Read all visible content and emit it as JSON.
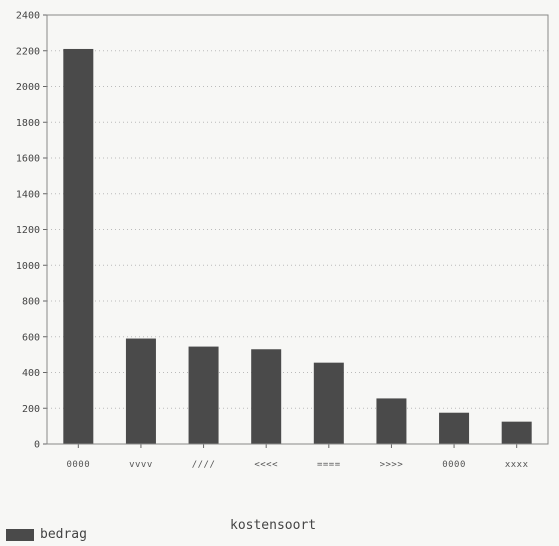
{
  "chart_data": {
    "type": "bar",
    "categories": [
      "0000",
      "vvvv",
      "////",
      "<<<<",
      "====",
      ">>>>",
      "0000",
      "xxxx"
    ],
    "values": [
      2210,
      590,
      545,
      530,
      455,
      255,
      175,
      125
    ],
    "ylim": [
      0,
      2400
    ],
    "yticks": [
      0,
      200,
      400,
      600,
      800,
      1000,
      1200,
      1400,
      1600,
      1800,
      2000,
      2200,
      2400
    ],
    "xlabel": "kostensoort",
    "ylabel": "",
    "legend": [
      {
        "name": "bedrag",
        "color": "#4a4a4a"
      }
    ],
    "legend_position": "bottom-left",
    "grid": "dotted horizontal",
    "bar_color": "#4a4a4a"
  }
}
